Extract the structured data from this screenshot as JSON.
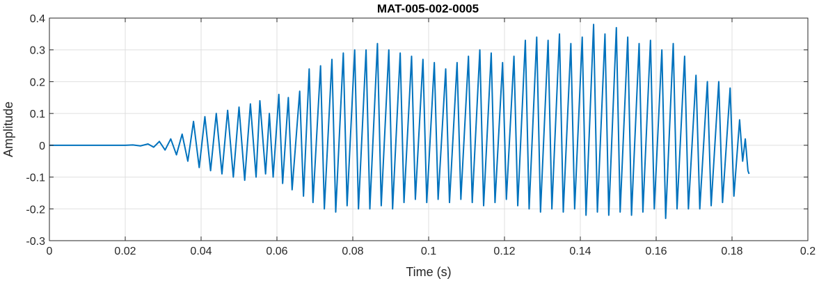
{
  "chart_data": {
    "type": "line",
    "title": "MAT-005-002-0005",
    "xlabel": "Time (s)",
    "ylabel": "Amplitude",
    "xlim": [
      0,
      0.2
    ],
    "ylim": [
      -0.3,
      0.4
    ],
    "grid": true,
    "line_color": "#0072BD",
    "xticks": [
      0,
      0.02,
      0.04,
      0.06,
      0.08,
      0.1,
      0.12,
      0.14,
      0.16,
      0.18,
      0.2
    ],
    "xtick_labels": [
      "0",
      "0.02",
      "0.04",
      "0.06",
      "0.08",
      "0.1",
      "0.12",
      "0.14",
      "0.16",
      "0.18",
      "0.2"
    ],
    "yticks": [
      -0.3,
      -0.2,
      -0.1,
      0,
      0.1,
      0.2,
      0.3,
      0.4
    ],
    "ytick_labels": [
      "-0.3",
      "-0.2",
      "-0.1",
      "0",
      "0.1",
      "0.2",
      "0.3",
      "0.4"
    ],
    "series": [
      {
        "x": [
          0,
          0.005,
          0.01,
          0.015,
          0.02,
          0.022,
          0.024,
          0.026,
          0.0275,
          0.029,
          0.0305,
          0.032,
          0.0335,
          0.035,
          0.0365,
          0.038,
          0.0395,
          0.041,
          0.0425,
          0.044,
          0.0455,
          0.047,
          0.0485,
          0.05,
          0.0515,
          0.053,
          0.0545,
          0.0555,
          0.057,
          0.058,
          0.059,
          0.0605,
          0.0615,
          0.063,
          0.064,
          0.066,
          0.067,
          0.0685,
          0.0695,
          0.0715,
          0.0725,
          0.0745,
          0.0755,
          0.0775,
          0.0785,
          0.0805,
          0.0815,
          0.0835,
          0.0845,
          0.0865,
          0.0875,
          0.0895,
          0.0905,
          0.0925,
          0.0935,
          0.0955,
          0.0965,
          0.0985,
          0.0995,
          0.1015,
          0.1025,
          0.1045,
          0.1055,
          0.1075,
          0.1085,
          0.1105,
          0.1115,
          0.1135,
          0.1145,
          0.1165,
          0.1175,
          0.1195,
          0.1205,
          0.1225,
          0.1235,
          0.1255,
          0.1265,
          0.1285,
          0.1295,
          0.1315,
          0.1325,
          0.1345,
          0.1355,
          0.1375,
          0.1385,
          0.1405,
          0.1415,
          0.1435,
          0.1445,
          0.1465,
          0.1475,
          0.1495,
          0.1505,
          0.1525,
          0.1535,
          0.1555,
          0.1565,
          0.1585,
          0.1595,
          0.1615,
          0.1625,
          0.1645,
          0.1655,
          0.1675,
          0.1685,
          0.1705,
          0.1715,
          0.1735,
          0.1745,
          0.1765,
          0.1775,
          0.1795,
          0.1805,
          0.182,
          0.1828,
          0.1835,
          0.1842,
          0.1845
        ],
        "y": [
          0,
          0,
          0,
          0,
          0,
          0.001,
          -0.002,
          0.004,
          -0.006,
          0.012,
          -0.015,
          0.02,
          -0.03,
          0.035,
          -0.05,
          0.075,
          -0.07,
          0.09,
          -0.08,
          0.1,
          -0.09,
          0.11,
          -0.1,
          0.12,
          -0.11,
          0.13,
          -0.1,
          0.14,
          -0.09,
          0.1,
          -0.1,
          0.16,
          -0.12,
          0.15,
          -0.14,
          0.17,
          -0.16,
          0.24,
          -0.18,
          0.25,
          -0.2,
          0.27,
          -0.21,
          0.29,
          -0.19,
          0.3,
          -0.2,
          0.3,
          -0.2,
          0.32,
          -0.19,
          0.3,
          -0.2,
          0.29,
          -0.18,
          0.28,
          -0.17,
          0.27,
          -0.18,
          0.26,
          -0.17,
          0.24,
          -0.18,
          0.26,
          -0.17,
          0.28,
          -0.18,
          0.3,
          -0.19,
          0.29,
          -0.18,
          0.26,
          -0.17,
          0.28,
          -0.19,
          0.33,
          -0.2,
          0.34,
          -0.21,
          0.33,
          -0.2,
          0.35,
          -0.21,
          0.32,
          -0.2,
          0.34,
          -0.22,
          0.38,
          -0.21,
          0.35,
          -0.22,
          0.37,
          -0.21,
          0.34,
          -0.22,
          0.32,
          -0.21,
          0.33,
          -0.2,
          0.3,
          -0.23,
          0.32,
          -0.2,
          0.28,
          -0.2,
          0.22,
          -0.2,
          0.2,
          -0.19,
          0.2,
          -0.18,
          0.18,
          -0.16,
          0.08,
          -0.05,
          0.02,
          -0.08,
          -0.09
        ]
      }
    ]
  }
}
